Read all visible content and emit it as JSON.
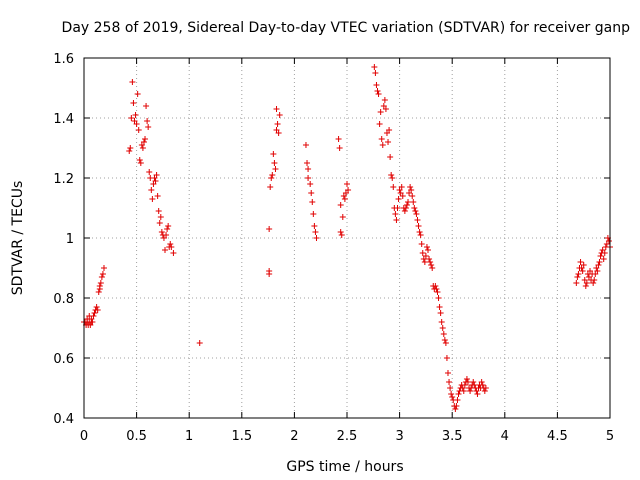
{
  "chart_data": {
    "type": "scatter",
    "title": "Day 258 of 2019, Sidereal Day-to-day VTEC variation (SDTVAR) for receiver ganp",
    "xlabel": "GPS time / hours",
    "ylabel": "SDTVAR / TECUs",
    "xlim": [
      0,
      5
    ],
    "ylim": [
      0.4,
      1.6
    ],
    "grid": true,
    "marker": "+",
    "color": "#e00000",
    "x_ticks": [
      0,
      0.5,
      1,
      1.5,
      2,
      2.5,
      3,
      3.5,
      4,
      4.5,
      5
    ],
    "x_tick_labels": [
      "0",
      "0.5",
      "1",
      "1.5",
      "2",
      "2.5",
      "3",
      "3.5",
      "4",
      "4.5",
      "5"
    ],
    "y_ticks": [
      0.4,
      0.6,
      0.8,
      1.0,
      1.2,
      1.4,
      1.6
    ],
    "y_tick_labels": [
      "0.4",
      "0.6",
      "0.8",
      "1",
      "1.2",
      "1.4",
      "1.6"
    ],
    "series": [
      {
        "name": "SDTVAR",
        "points": [
          [
            0.0,
            0.72
          ],
          [
            0.01,
            0.72
          ],
          [
            0.02,
            0.71
          ],
          [
            0.03,
            0.73
          ],
          [
            0.03,
            0.72
          ],
          [
            0.04,
            0.71
          ],
          [
            0.05,
            0.72
          ],
          [
            0.05,
            0.74
          ],
          [
            0.06,
            0.71
          ],
          [
            0.07,
            0.72
          ],
          [
            0.07,
            0.73
          ],
          [
            0.08,
            0.72
          ],
          [
            0.09,
            0.74
          ],
          [
            0.1,
            0.75
          ],
          [
            0.11,
            0.76
          ],
          [
            0.12,
            0.77
          ],
          [
            0.13,
            0.76
          ],
          [
            0.14,
            0.82
          ],
          [
            0.15,
            0.83
          ],
          [
            0.15,
            0.84
          ],
          [
            0.16,
            0.85
          ],
          [
            0.17,
            0.87
          ],
          [
            0.18,
            0.88
          ],
          [
            0.19,
            0.9
          ],
          [
            0.43,
            1.29
          ],
          [
            0.44,
            1.3
          ],
          [
            0.45,
            1.4
          ],
          [
            0.46,
            1.52
          ],
          [
            0.47,
            1.45
          ],
          [
            0.48,
            1.39
          ],
          [
            0.49,
            1.41
          ],
          [
            0.5,
            1.38
          ],
          [
            0.51,
            1.48
          ],
          [
            0.52,
            1.36
          ],
          [
            0.53,
            1.26
          ],
          [
            0.54,
            1.25
          ],
          [
            0.55,
            1.31
          ],
          [
            0.56,
            1.3
          ],
          [
            0.57,
            1.32
          ],
          [
            0.58,
            1.33
          ],
          [
            0.59,
            1.44
          ],
          [
            0.6,
            1.39
          ],
          [
            0.61,
            1.37
          ],
          [
            0.62,
            1.22
          ],
          [
            0.63,
            1.2
          ],
          [
            0.64,
            1.16
          ],
          [
            0.65,
            1.13
          ],
          [
            0.66,
            1.18
          ],
          [
            0.67,
            1.2
          ],
          [
            0.68,
            1.19
          ],
          [
            0.69,
            1.21
          ],
          [
            0.7,
            1.14
          ],
          [
            0.71,
            1.09
          ],
          [
            0.72,
            1.05
          ],
          [
            0.73,
            1.07
          ],
          [
            0.74,
            1.02
          ],
          [
            0.75,
            1.01
          ],
          [
            0.76,
            1.0
          ],
          [
            0.77,
            0.96
          ],
          [
            0.78,
            1.01
          ],
          [
            0.79,
            1.03
          ],
          [
            0.8,
            1.04
          ],
          [
            0.81,
            0.97
          ],
          [
            0.82,
            0.98
          ],
          [
            0.83,
            0.97
          ],
          [
            0.85,
            0.95
          ],
          [
            1.1,
            0.65
          ],
          [
            1.76,
            0.88
          ],
          [
            1.76,
            0.89
          ],
          [
            1.76,
            1.03
          ],
          [
            1.77,
            1.17
          ],
          [
            1.78,
            1.2
          ],
          [
            1.79,
            1.21
          ],
          [
            1.8,
            1.28
          ],
          [
            1.81,
            1.25
          ],
          [
            1.82,
            1.23
          ],
          [
            1.83,
            1.36
          ],
          [
            1.83,
            1.43
          ],
          [
            1.84,
            1.38
          ],
          [
            1.85,
            1.35
          ],
          [
            1.86,
            1.41
          ],
          [
            2.11,
            1.31
          ],
          [
            2.12,
            1.25
          ],
          [
            2.13,
            1.23
          ],
          [
            2.13,
            1.2
          ],
          [
            2.15,
            1.18
          ],
          [
            2.16,
            1.15
          ],
          [
            2.17,
            1.12
          ],
          [
            2.18,
            1.08
          ],
          [
            2.19,
            1.04
          ],
          [
            2.2,
            1.02
          ],
          [
            2.21,
            1.0
          ],
          [
            2.42,
            1.33
          ],
          [
            2.43,
            1.3
          ],
          [
            2.44,
            1.11
          ],
          [
            2.44,
            1.02
          ],
          [
            2.45,
            1.01
          ],
          [
            2.46,
            1.07
          ],
          [
            2.47,
            1.14
          ],
          [
            2.48,
            1.13
          ],
          [
            2.49,
            1.15
          ],
          [
            2.5,
            1.18
          ],
          [
            2.51,
            1.16
          ],
          [
            2.76,
            1.57
          ],
          [
            2.77,
            1.55
          ],
          [
            2.78,
            1.51
          ],
          [
            2.79,
            1.49
          ],
          [
            2.8,
            1.48
          ],
          [
            2.81,
            1.38
          ],
          [
            2.82,
            1.42
          ],
          [
            2.83,
            1.33
          ],
          [
            2.84,
            1.31
          ],
          [
            2.85,
            1.44
          ],
          [
            2.86,
            1.46
          ],
          [
            2.87,
            1.43
          ],
          [
            2.88,
            1.35
          ],
          [
            2.89,
            1.32
          ],
          [
            2.9,
            1.36
          ],
          [
            2.91,
            1.27
          ],
          [
            2.92,
            1.21
          ],
          [
            2.93,
            1.2
          ],
          [
            2.94,
            1.17
          ],
          [
            2.95,
            1.1
          ],
          [
            2.96,
            1.08
          ],
          [
            2.97,
            1.06
          ],
          [
            2.98,
            1.1
          ],
          [
            2.99,
            1.13
          ],
          [
            3.0,
            1.16
          ],
          [
            3.01,
            1.15
          ],
          [
            3.02,
            1.17
          ],
          [
            3.03,
            1.14
          ],
          [
            3.04,
            1.1
          ],
          [
            3.05,
            1.09
          ],
          [
            3.06,
            1.1
          ],
          [
            3.07,
            1.11
          ],
          [
            3.08,
            1.12
          ],
          [
            3.09,
            1.15
          ],
          [
            3.1,
            1.17
          ],
          [
            3.11,
            1.16
          ],
          [
            3.12,
            1.14
          ],
          [
            3.13,
            1.12
          ],
          [
            3.14,
            1.1
          ],
          [
            3.15,
            1.09
          ],
          [
            3.16,
            1.08
          ],
          [
            3.17,
            1.06
          ],
          [
            3.18,
            1.04
          ],
          [
            3.19,
            1.02
          ],
          [
            3.2,
            1.01
          ],
          [
            3.21,
            0.98
          ],
          [
            3.22,
            0.95
          ],
          [
            3.23,
            0.93
          ],
          [
            3.24,
            0.92
          ],
          [
            3.25,
            0.94
          ],
          [
            3.26,
            0.97
          ],
          [
            3.27,
            0.96
          ],
          [
            3.28,
            0.93
          ],
          [
            3.29,
            0.92
          ],
          [
            3.3,
            0.91
          ],
          [
            3.31,
            0.9
          ],
          [
            3.32,
            0.84
          ],
          [
            3.33,
            0.83
          ],
          [
            3.34,
            0.84
          ],
          [
            3.35,
            0.83
          ],
          [
            3.36,
            0.82
          ],
          [
            3.37,
            0.8
          ],
          [
            3.38,
            0.77
          ],
          [
            3.39,
            0.75
          ],
          [
            3.4,
            0.72
          ],
          [
            3.41,
            0.7
          ],
          [
            3.42,
            0.68
          ],
          [
            3.43,
            0.66
          ],
          [
            3.44,
            0.65
          ],
          [
            3.45,
            0.6
          ],
          [
            3.46,
            0.55
          ],
          [
            3.47,
            0.52
          ],
          [
            3.48,
            0.5
          ],
          [
            3.49,
            0.48
          ],
          [
            3.5,
            0.47
          ],
          [
            3.51,
            0.46
          ],
          [
            3.52,
            0.44
          ],
          [
            3.53,
            0.43
          ],
          [
            3.54,
            0.44
          ],
          [
            3.55,
            0.46
          ],
          [
            3.56,
            0.48
          ],
          [
            3.57,
            0.49
          ],
          [
            3.58,
            0.5
          ],
          [
            3.59,
            0.51
          ],
          [
            3.6,
            0.5
          ],
          [
            3.61,
            0.49
          ],
          [
            3.62,
            0.51
          ],
          [
            3.63,
            0.52
          ],
          [
            3.64,
            0.53
          ],
          [
            3.65,
            0.52
          ],
          [
            3.66,
            0.5
          ],
          [
            3.67,
            0.49
          ],
          [
            3.68,
            0.5
          ],
          [
            3.69,
            0.51
          ],
          [
            3.7,
            0.52
          ],
          [
            3.71,
            0.51
          ],
          [
            3.72,
            0.5
          ],
          [
            3.73,
            0.49
          ],
          [
            3.74,
            0.48
          ],
          [
            3.75,
            0.5
          ],
          [
            3.76,
            0.51
          ],
          [
            3.77,
            0.5
          ],
          [
            3.78,
            0.52
          ],
          [
            3.79,
            0.51
          ],
          [
            3.8,
            0.5
          ],
          [
            3.81,
            0.49
          ],
          [
            3.82,
            0.5
          ],
          [
            4.68,
            0.85
          ],
          [
            4.69,
            0.87
          ],
          [
            4.7,
            0.88
          ],
          [
            4.71,
            0.9
          ],
          [
            4.72,
            0.92
          ],
          [
            4.73,
            0.9
          ],
          [
            4.74,
            0.89
          ],
          [
            4.75,
            0.91
          ],
          [
            4.76,
            0.86
          ],
          [
            4.77,
            0.84
          ],
          [
            4.78,
            0.85
          ],
          [
            4.79,
            0.88
          ],
          [
            4.8,
            0.87
          ],
          [
            4.81,
            0.89
          ],
          [
            4.82,
            0.86
          ],
          [
            4.83,
            0.88
          ],
          [
            4.84,
            0.85
          ],
          [
            4.85,
            0.86
          ],
          [
            4.86,
            0.88
          ],
          [
            4.87,
            0.9
          ],
          [
            4.88,
            0.89
          ],
          [
            4.89,
            0.91
          ],
          [
            4.9,
            0.92
          ],
          [
            4.91,
            0.94
          ],
          [
            4.92,
            0.95
          ],
          [
            4.93,
            0.96
          ],
          [
            4.94,
            0.93
          ],
          [
            4.95,
            0.95
          ],
          [
            4.96,
            0.97
          ],
          [
            4.97,
            0.98
          ],
          [
            4.98,
            1.0
          ],
          [
            4.99,
            0.99
          ],
          [
            5.0,
            0.97
          ]
        ]
      }
    ]
  }
}
